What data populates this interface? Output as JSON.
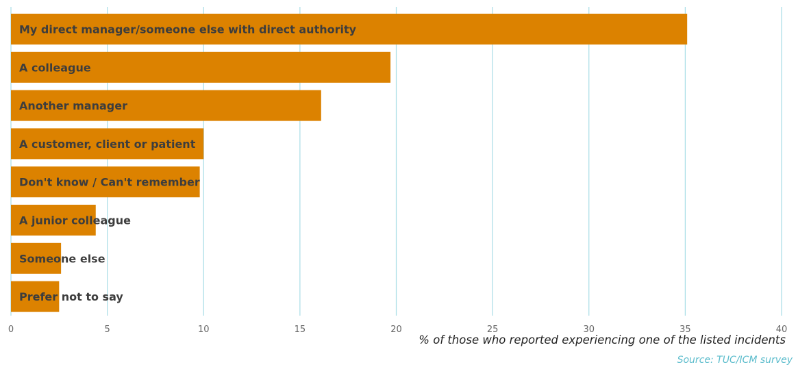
{
  "chart_data": {
    "type": "bar",
    "orientation": "horizontal",
    "categories": [
      "My direct manager/someone else with direct authority",
      "A colleague",
      "Another manager",
      "A customer, client or patient",
      "Don't know / Can't remember",
      "A junior colleague",
      "Someone else",
      "Prefer not to say"
    ],
    "values": [
      35.1,
      19.7,
      16.1,
      10.0,
      9.8,
      4.4,
      2.6,
      2.5
    ],
    "title": "",
    "xlabel": "% of those who reported experiencing one of the listed incidents",
    "ylabel": "",
    "xlim": [
      0,
      40
    ],
    "xticks": [
      "0",
      "5",
      "10",
      "15",
      "20",
      "25",
      "30",
      "35",
      "40"
    ],
    "grid": "vertical",
    "colors": {
      "bar": "#dc8200",
      "grid": "#a8dde6",
      "source": "#5bbccc"
    },
    "source": "Source: TUC/ICM survey"
  }
}
